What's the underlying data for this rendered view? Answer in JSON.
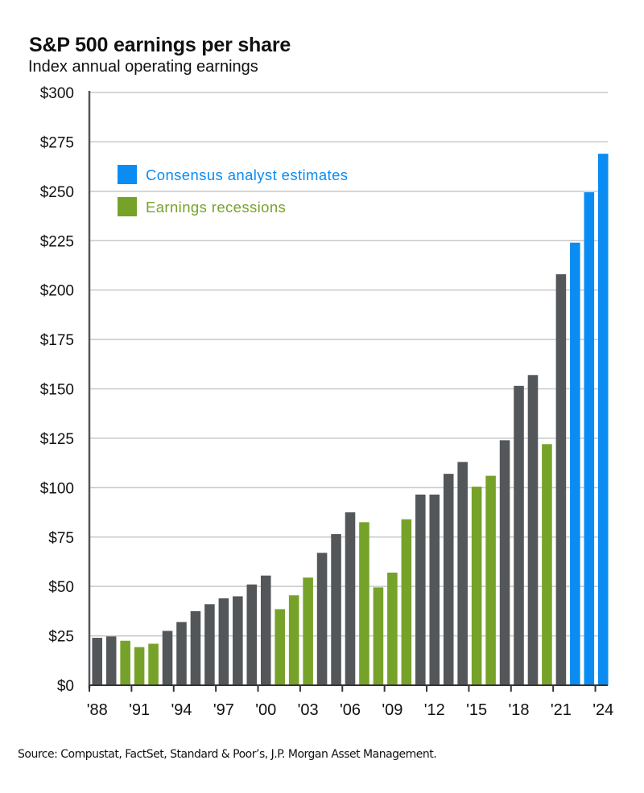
{
  "chart_data": {
    "type": "bar",
    "title": "S&P 500 earnings per share",
    "subtitle": "Index annual operating earnings",
    "xlabel": "",
    "ylabel": "",
    "ylim": [
      0,
      300
    ],
    "yticks": [
      0,
      25,
      50,
      75,
      100,
      125,
      150,
      175,
      200,
      225,
      250,
      275,
      300
    ],
    "ytick_labels": [
      "$0",
      "$25",
      "$50",
      "$75",
      "$100",
      "$125",
      "$150",
      "$175",
      "$200",
      "$225",
      "$250",
      "$275",
      "$300"
    ],
    "grid": true,
    "x": [
      1988,
      1989,
      1990,
      1991,
      1992,
      1993,
      1994,
      1995,
      1996,
      1997,
      1998,
      1999,
      2000,
      2001,
      2002,
      2003,
      2004,
      2005,
      2006,
      2007,
      2008,
      2009,
      2010,
      2011,
      2012,
      2013,
      2014,
      2015,
      2016,
      2017,
      2018,
      2019,
      2020,
      2021,
      2022,
      2023,
      2024
    ],
    "xtick_years": [
      1988,
      1991,
      1994,
      1997,
      2000,
      2003,
      2006,
      2009,
      2012,
      2015,
      2018,
      2021,
      2024
    ],
    "xtick_labels": [
      "'88",
      "'91",
      "'94",
      "'97",
      "'00",
      "'03",
      "'06",
      "'09",
      "'12",
      "'15",
      "'18",
      "'21",
      "'24"
    ],
    "values": [
      24,
      24.7,
      22.5,
      19.3,
      21,
      27.5,
      32,
      37.5,
      41,
      44,
      45,
      51,
      55.5,
      38.5,
      45.5,
      54.5,
      67,
      76.5,
      87.5,
      82.5,
      49.5,
      57,
      84,
      96.5,
      96.5,
      107,
      113,
      100.5,
      106,
      124,
      151.5,
      157,
      122,
      208,
      224,
      249.5,
      269
    ],
    "categories_per_bar": [
      "actual",
      "actual",
      "recession",
      "recession",
      "recession",
      "actual",
      "actual",
      "actual",
      "actual",
      "actual",
      "actual",
      "actual",
      "actual",
      "recession",
      "recession",
      "recession",
      "actual",
      "actual",
      "actual",
      "recession",
      "recession",
      "recession",
      "recession",
      "actual",
      "actual",
      "actual",
      "actual",
      "recession",
      "recession",
      "actual",
      "actual",
      "actual",
      "recession",
      "actual",
      "estimate",
      "estimate",
      "estimate"
    ],
    "legend": {
      "placement": "top-left",
      "entries": [
        {
          "key": "estimate",
          "label": "Consensus analyst estimates",
          "color": "#0a8cf2"
        },
        {
          "key": "recession",
          "label": "Earnings recessions",
          "color": "#76a22a"
        }
      ]
    },
    "colors": {
      "actual": "#54575a",
      "recession": "#76a22a",
      "estimate": "#0a8cf2",
      "grid": "#c8c8c8",
      "axis": "#555555"
    }
  },
  "source": "Source: Compustat, FactSet, Standard & Poor’s, J.P. Morgan Asset Management."
}
